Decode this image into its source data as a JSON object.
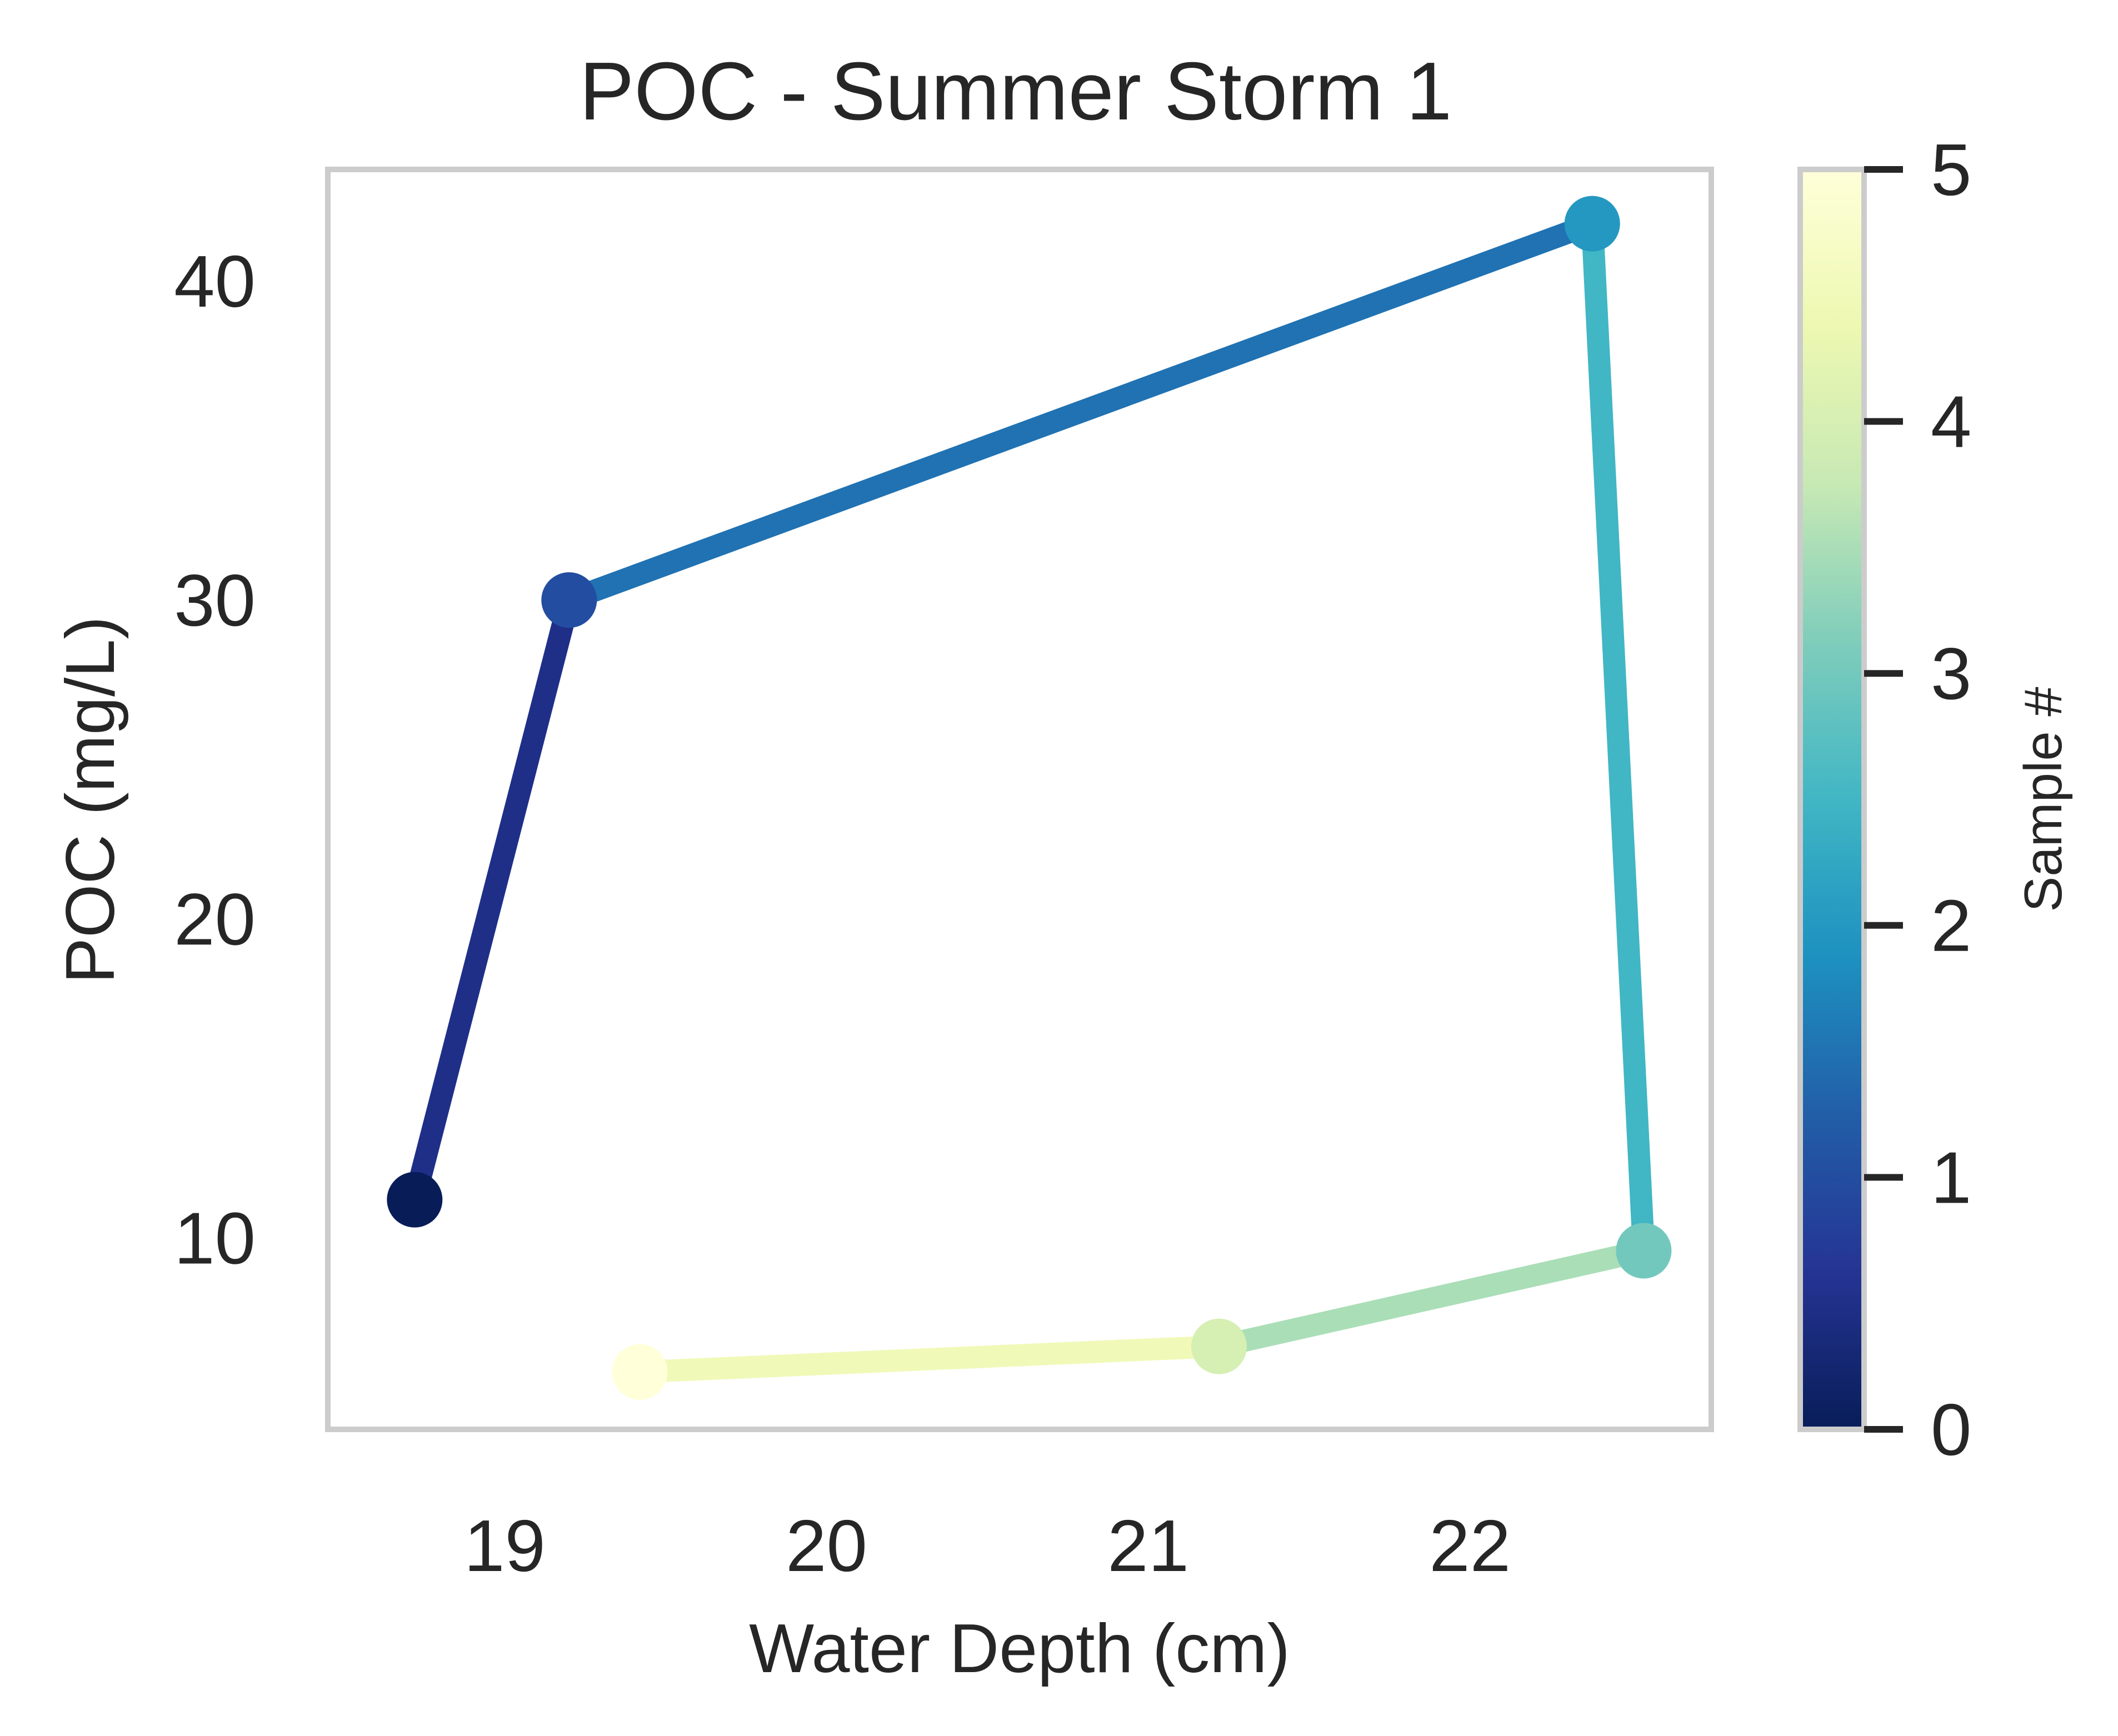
{
  "chart_data": {
    "type": "line",
    "title": "POC - Summer Storm 1",
    "xlabel": "Water Depth (cm)",
    "ylabel": "POC (mg/L)",
    "xlim": [
      18.45,
      22.75
    ],
    "ylim": [
      4,
      43.5
    ],
    "xticks": [
      19,
      20,
      21,
      22
    ],
    "yticks": [
      10,
      20,
      30,
      40
    ],
    "grid": false,
    "series": [
      {
        "x": [
          18.72,
          19.2,
          22.38,
          22.54,
          21.22,
          19.42
        ],
        "y": [
          11.2,
          30.0,
          41.8,
          9.6,
          6.6,
          5.8
        ],
        "sample": [
          0,
          1,
          2,
          3,
          4,
          5
        ]
      }
    ],
    "colorbar": {
      "label": "Sample #",
      "ticks": [
        0,
        1,
        2,
        3,
        4,
        5
      ],
      "range": [
        0,
        5
      ],
      "colormap": "YlGnBu_r",
      "stops": [
        "#081d58",
        "#253494",
        "#225ea8",
        "#1d91c0",
        "#41b6c4",
        "#7fcdbb",
        "#c7e9b4",
        "#edf8b1",
        "#ffffd9"
      ]
    }
  }
}
